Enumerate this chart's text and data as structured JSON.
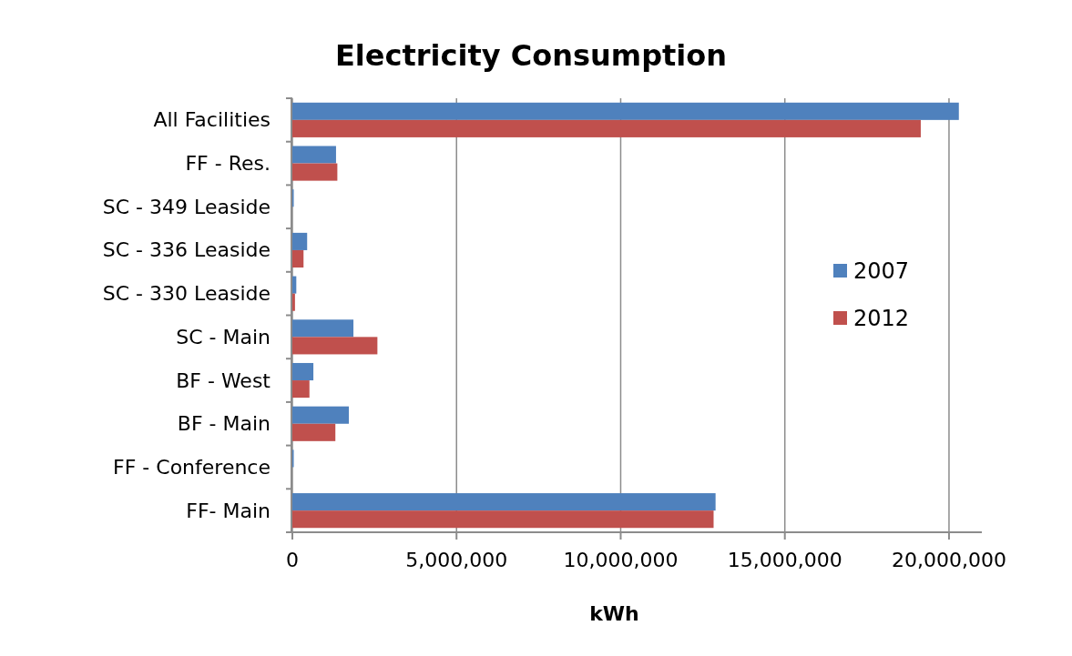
{
  "chart_data": {
    "type": "bar",
    "orientation": "horizontal",
    "title": "Electricity Consumption",
    "xlabel": "kWh",
    "categories": [
      "All Facilities",
      "FF - Res.",
      "SC - 349 Leaside",
      "SC - 336 Leaside",
      "SC - 330 Leaside",
      "SC - Main",
      "BF - West",
      "BF - Main",
      "FF - Conference",
      "FF- Main"
    ],
    "series": [
      {
        "name": "2007",
        "color": "#4f81bd",
        "values": [
          20300000,
          1330000,
          30000,
          450000,
          120000,
          1860000,
          640000,
          1720000,
          30000,
          12890000
        ]
      },
      {
        "name": "2012",
        "color": "#c0504d",
        "values": [
          19140000,
          1370000,
          0,
          340000,
          80000,
          2590000,
          520000,
          1310000,
          0,
          12830000
        ]
      }
    ],
    "xlim": [
      0,
      21000000
    ],
    "xticks": [
      {
        "value": 0,
        "label": "0"
      },
      {
        "value": 5000000,
        "label": "5,000,000"
      },
      {
        "value": 10000000,
        "label": "10,000,000"
      },
      {
        "value": 15000000,
        "label": "15,000,000"
      },
      {
        "value": 20000000,
        "label": "20,000,000"
      }
    ],
    "grid": "x",
    "legend": "right"
  }
}
